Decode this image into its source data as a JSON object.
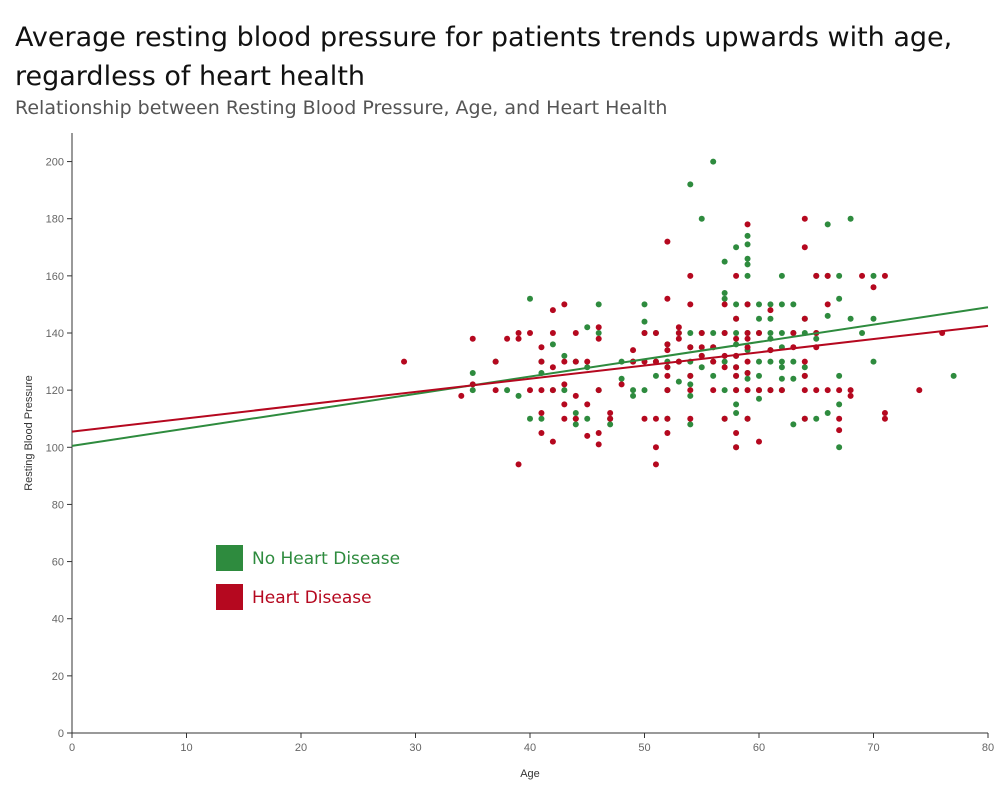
{
  "header": {
    "title": "Average resting blood pressure for patients trends upwards with age, regardless of heart health",
    "subtitle": "Relationship between Resting Blood Pressure, Age, and Heart Health"
  },
  "colors": {
    "no_disease": "#2E8B3E",
    "disease": "#B5081F",
    "axis": "#333333",
    "tick_label": "#666666"
  },
  "chart_data": {
    "type": "scatter",
    "xlabel": "Age",
    "ylabel": "Resting Blood Pressure",
    "xlim": [
      0,
      80
    ],
    "ylim": [
      0,
      210
    ],
    "x_ticks": [
      0,
      10,
      20,
      30,
      40,
      50,
      60,
      70,
      80
    ],
    "y_ticks": [
      0,
      20,
      40,
      60,
      80,
      100,
      120,
      140,
      160,
      180,
      200
    ],
    "grid": false,
    "legend_position": "lower-left",
    "series": [
      {
        "name": "No Heart Disease",
        "color": "#2E8B3E",
        "trend": [
          [
            0,
            100.5
          ],
          [
            80,
            149
          ]
        ],
        "points": [
          [
            35,
            126
          ],
          [
            35,
            120
          ],
          [
            37,
            130
          ],
          [
            38,
            120
          ],
          [
            39,
            118
          ],
          [
            40,
            152
          ],
          [
            40,
            110
          ],
          [
            41,
            130
          ],
          [
            41,
            126
          ],
          [
            41,
            110
          ],
          [
            42,
            136
          ],
          [
            42,
            120
          ],
          [
            43,
            132
          ],
          [
            43,
            120
          ],
          [
            44,
            130
          ],
          [
            44,
            112
          ],
          [
            44,
            110
          ],
          [
            44,
            108
          ],
          [
            45,
            142
          ],
          [
            45,
            110
          ],
          [
            45,
            128
          ],
          [
            46,
            150
          ],
          [
            46,
            140
          ],
          [
            46,
            120
          ],
          [
            47,
            110
          ],
          [
            47,
            108
          ],
          [
            48,
            130
          ],
          [
            48,
            124
          ],
          [
            49,
            130
          ],
          [
            49,
            120
          ],
          [
            49,
            118
          ],
          [
            50,
            150
          ],
          [
            50,
            144
          ],
          [
            50,
            140
          ],
          [
            50,
            120
          ],
          [
            51,
            140
          ],
          [
            51,
            130
          ],
          [
            51,
            125
          ],
          [
            52,
            136
          ],
          [
            52,
            130
          ],
          [
            52,
            128
          ],
          [
            52,
            120
          ],
          [
            52,
            110
          ],
          [
            53,
            140
          ],
          [
            53,
            130
          ],
          [
            53,
            123
          ],
          [
            54,
            192
          ],
          [
            54,
            140
          ],
          [
            54,
            135
          ],
          [
            54,
            130
          ],
          [
            54,
            125
          ],
          [
            54,
            122
          ],
          [
            54,
            118
          ],
          [
            54,
            108
          ],
          [
            55,
            180
          ],
          [
            55,
            132
          ],
          [
            55,
            128
          ],
          [
            55,
            140
          ],
          [
            56,
            200
          ],
          [
            56,
            140
          ],
          [
            56,
            135
          ],
          [
            56,
            130
          ],
          [
            56,
            125
          ],
          [
            57,
            165
          ],
          [
            57,
            154
          ],
          [
            57,
            152
          ],
          [
            57,
            140
          ],
          [
            57,
            130
          ],
          [
            57,
            120
          ],
          [
            57,
            110
          ],
          [
            58,
            170
          ],
          [
            58,
            150
          ],
          [
            58,
            145
          ],
          [
            58,
            140
          ],
          [
            58,
            136
          ],
          [
            58,
            132
          ],
          [
            58,
            128
          ],
          [
            58,
            125
          ],
          [
            58,
            120
          ],
          [
            58,
            115
          ],
          [
            58,
            112
          ],
          [
            58,
            100
          ],
          [
            59,
            174
          ],
          [
            59,
            171
          ],
          [
            59,
            166
          ],
          [
            59,
            164
          ],
          [
            59,
            160
          ],
          [
            59,
            150
          ],
          [
            59,
            140
          ],
          [
            59,
            134
          ],
          [
            59,
            126
          ],
          [
            59,
            124
          ],
          [
            59,
            110
          ],
          [
            60,
            150
          ],
          [
            60,
            145
          ],
          [
            60,
            140
          ],
          [
            60,
            130
          ],
          [
            60,
            125
          ],
          [
            60,
            120
          ],
          [
            60,
            117
          ],
          [
            61,
            150
          ],
          [
            61,
            145
          ],
          [
            61,
            140
          ],
          [
            61,
            138
          ],
          [
            61,
            134
          ],
          [
            61,
            130
          ],
          [
            61,
            120
          ],
          [
            62,
            160
          ],
          [
            62,
            150
          ],
          [
            62,
            140
          ],
          [
            62,
            135
          ],
          [
            62,
            130
          ],
          [
            62,
            128
          ],
          [
            62,
            124
          ],
          [
            62,
            120
          ],
          [
            63,
            150
          ],
          [
            63,
            140
          ],
          [
            63,
            130
          ],
          [
            63,
            124
          ],
          [
            63,
            108
          ],
          [
            64,
            145
          ],
          [
            64,
            140
          ],
          [
            64,
            128
          ],
          [
            64,
            125
          ],
          [
            64,
            110
          ],
          [
            65,
            160
          ],
          [
            65,
            140
          ],
          [
            65,
            138
          ],
          [
            65,
            110
          ],
          [
            66,
            178
          ],
          [
            66,
            160
          ],
          [
            66,
            146
          ],
          [
            66,
            112
          ],
          [
            67,
            160
          ],
          [
            67,
            152
          ],
          [
            67,
            125
          ],
          [
            67,
            115
          ],
          [
            67,
            100
          ],
          [
            68,
            180
          ],
          [
            68,
            145
          ],
          [
            69,
            140
          ],
          [
            70,
            160
          ],
          [
            70,
            145
          ],
          [
            70,
            130
          ],
          [
            77,
            125
          ]
        ]
      },
      {
        "name": "Heart Disease",
        "color": "#B5081F",
        "trend": [
          [
            0,
            105.5
          ],
          [
            80,
            142.5
          ]
        ],
        "points": [
          [
            29,
            130
          ],
          [
            34,
            118
          ],
          [
            35,
            138
          ],
          [
            35,
            122
          ],
          [
            37,
            130
          ],
          [
            37,
            120
          ],
          [
            38,
            138
          ],
          [
            39,
            140
          ],
          [
            39,
            138
          ],
          [
            39,
            94
          ],
          [
            40,
            140
          ],
          [
            40,
            120
          ],
          [
            41,
            135
          ],
          [
            41,
            130
          ],
          [
            41,
            120
          ],
          [
            41,
            112
          ],
          [
            41,
            105
          ],
          [
            42,
            148
          ],
          [
            42,
            140
          ],
          [
            42,
            128
          ],
          [
            42,
            120
          ],
          [
            42,
            102
          ],
          [
            43,
            150
          ],
          [
            43,
            130
          ],
          [
            43,
            122
          ],
          [
            43,
            115
          ],
          [
            43,
            110
          ],
          [
            44,
            140
          ],
          [
            44,
            130
          ],
          [
            44,
            118
          ],
          [
            44,
            110
          ],
          [
            45,
            130
          ],
          [
            45,
            115
          ],
          [
            45,
            104
          ],
          [
            46,
            142
          ],
          [
            46,
            138
          ],
          [
            46,
            120
          ],
          [
            46,
            105
          ],
          [
            46,
            101
          ],
          [
            47,
            112
          ],
          [
            47,
            110
          ],
          [
            48,
            122
          ],
          [
            49,
            134
          ],
          [
            49,
            130
          ],
          [
            50,
            140
          ],
          [
            50,
            130
          ],
          [
            50,
            110
          ],
          [
            51,
            140
          ],
          [
            51,
            130
          ],
          [
            51,
            110
          ],
          [
            51,
            100
          ],
          [
            51,
            94
          ],
          [
            52,
            172
          ],
          [
            52,
            152
          ],
          [
            52,
            136
          ],
          [
            52,
            134
          ],
          [
            52,
            128
          ],
          [
            52,
            125
          ],
          [
            52,
            120
          ],
          [
            52,
            110
          ],
          [
            52,
            105
          ],
          [
            53,
            142
          ],
          [
            53,
            140
          ],
          [
            53,
            138
          ],
          [
            53,
            130
          ],
          [
            54,
            160
          ],
          [
            54,
            150
          ],
          [
            54,
            135
          ],
          [
            54,
            125
          ],
          [
            54,
            120
          ],
          [
            54,
            110
          ],
          [
            55,
            140
          ],
          [
            55,
            135
          ],
          [
            55,
            132
          ],
          [
            56,
            135
          ],
          [
            56,
            130
          ],
          [
            56,
            120
          ],
          [
            57,
            150
          ],
          [
            57,
            140
          ],
          [
            57,
            132
          ],
          [
            57,
            128
          ],
          [
            57,
            110
          ],
          [
            58,
            160
          ],
          [
            58,
            145
          ],
          [
            58,
            138
          ],
          [
            58,
            132
          ],
          [
            58,
            128
          ],
          [
            58,
            125
          ],
          [
            58,
            120
          ],
          [
            58,
            105
          ],
          [
            58,
            100
          ],
          [
            59,
            178
          ],
          [
            59,
            150
          ],
          [
            59,
            140
          ],
          [
            59,
            138
          ],
          [
            59,
            135
          ],
          [
            59,
            130
          ],
          [
            59,
            126
          ],
          [
            59,
            120
          ],
          [
            59,
            110
          ],
          [
            60,
            140
          ],
          [
            60,
            120
          ],
          [
            60,
            102
          ],
          [
            61,
            148
          ],
          [
            61,
            134
          ],
          [
            61,
            120
          ],
          [
            62,
            120
          ],
          [
            63,
            140
          ],
          [
            63,
            135
          ],
          [
            64,
            180
          ],
          [
            64,
            170
          ],
          [
            64,
            145
          ],
          [
            64,
            130
          ],
          [
            64,
            125
          ],
          [
            64,
            120
          ],
          [
            64,
            110
          ],
          [
            65,
            160
          ],
          [
            65,
            140
          ],
          [
            65,
            135
          ],
          [
            65,
            120
          ],
          [
            66,
            160
          ],
          [
            66,
            150
          ],
          [
            66,
            120
          ],
          [
            67,
            120
          ],
          [
            67,
            110
          ],
          [
            67,
            106
          ],
          [
            68,
            120
          ],
          [
            68,
            118
          ],
          [
            69,
            160
          ],
          [
            70,
            156
          ],
          [
            71,
            160
          ],
          [
            71,
            112
          ],
          [
            71,
            110
          ],
          [
            74,
            120
          ],
          [
            76,
            140
          ]
        ]
      }
    ]
  },
  "legend": {
    "items": [
      {
        "label": "No Heart Disease",
        "color": "#2E8B3E"
      },
      {
        "label": "Heart Disease",
        "color": "#B5081F"
      }
    ]
  }
}
